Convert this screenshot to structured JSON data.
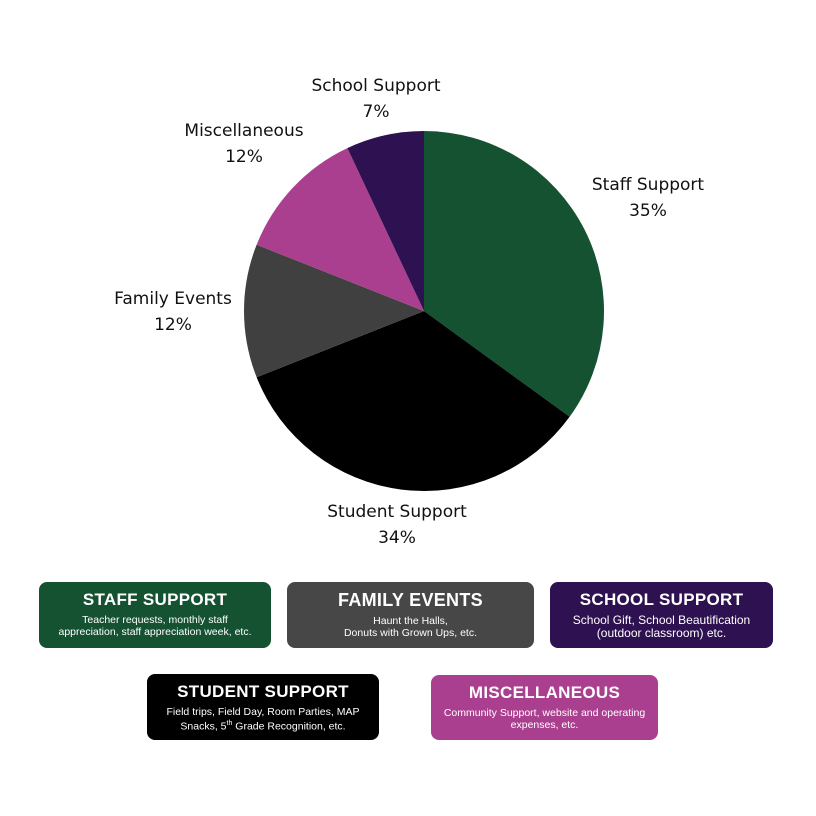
{
  "chart_data": {
    "type": "pie",
    "slices": [
      {
        "label": "Staff Support",
        "percent_label": "35%",
        "value": 35,
        "color": "#155232"
      },
      {
        "label": "Student Support",
        "percent_label": "34%",
        "value": 34,
        "color": "#000000"
      },
      {
        "label": "Family Events",
        "percent_label": "12%",
        "value": 12,
        "color": "#404040"
      },
      {
        "label": "Miscellaneous",
        "percent_label": "12%",
        "value": 12,
        "color": "#ab3f8f"
      },
      {
        "label": "School Support",
        "percent_label": "7%",
        "value": 7,
        "color": "#2e1150"
      }
    ]
  },
  "cards": {
    "staff": {
      "title": "STAFF SUPPORT",
      "desc1": "Teacher requests, monthly staff",
      "desc2": "appreciation, staff appreciation week, etc.",
      "color": "#155232"
    },
    "family": {
      "title": "FAMILY EVENTS",
      "desc1": "Haunt the Halls,",
      "desc2": "Donuts with Grown Ups, etc.",
      "color": "#474747"
    },
    "school": {
      "title": "SCHOOL SUPPORT",
      "desc1": "School Gift, School Beautification",
      "desc2": "(outdoor classroom) etc.",
      "color": "#2e1150"
    },
    "student": {
      "title": "STUDENT SUPPORT",
      "desc1": "Field trips, Field Day, Room Parties, MAP",
      "desc2_pre": "Snacks, 5",
      "desc2_sup": "th",
      "desc2_post": " Grade Recognition, etc.",
      "color": "#000000"
    },
    "misc": {
      "title": "MISCELLANEOUS",
      "desc1": "Community Support, website and operating",
      "desc2": "expenses, etc.",
      "color": "#ab3f8f"
    }
  }
}
